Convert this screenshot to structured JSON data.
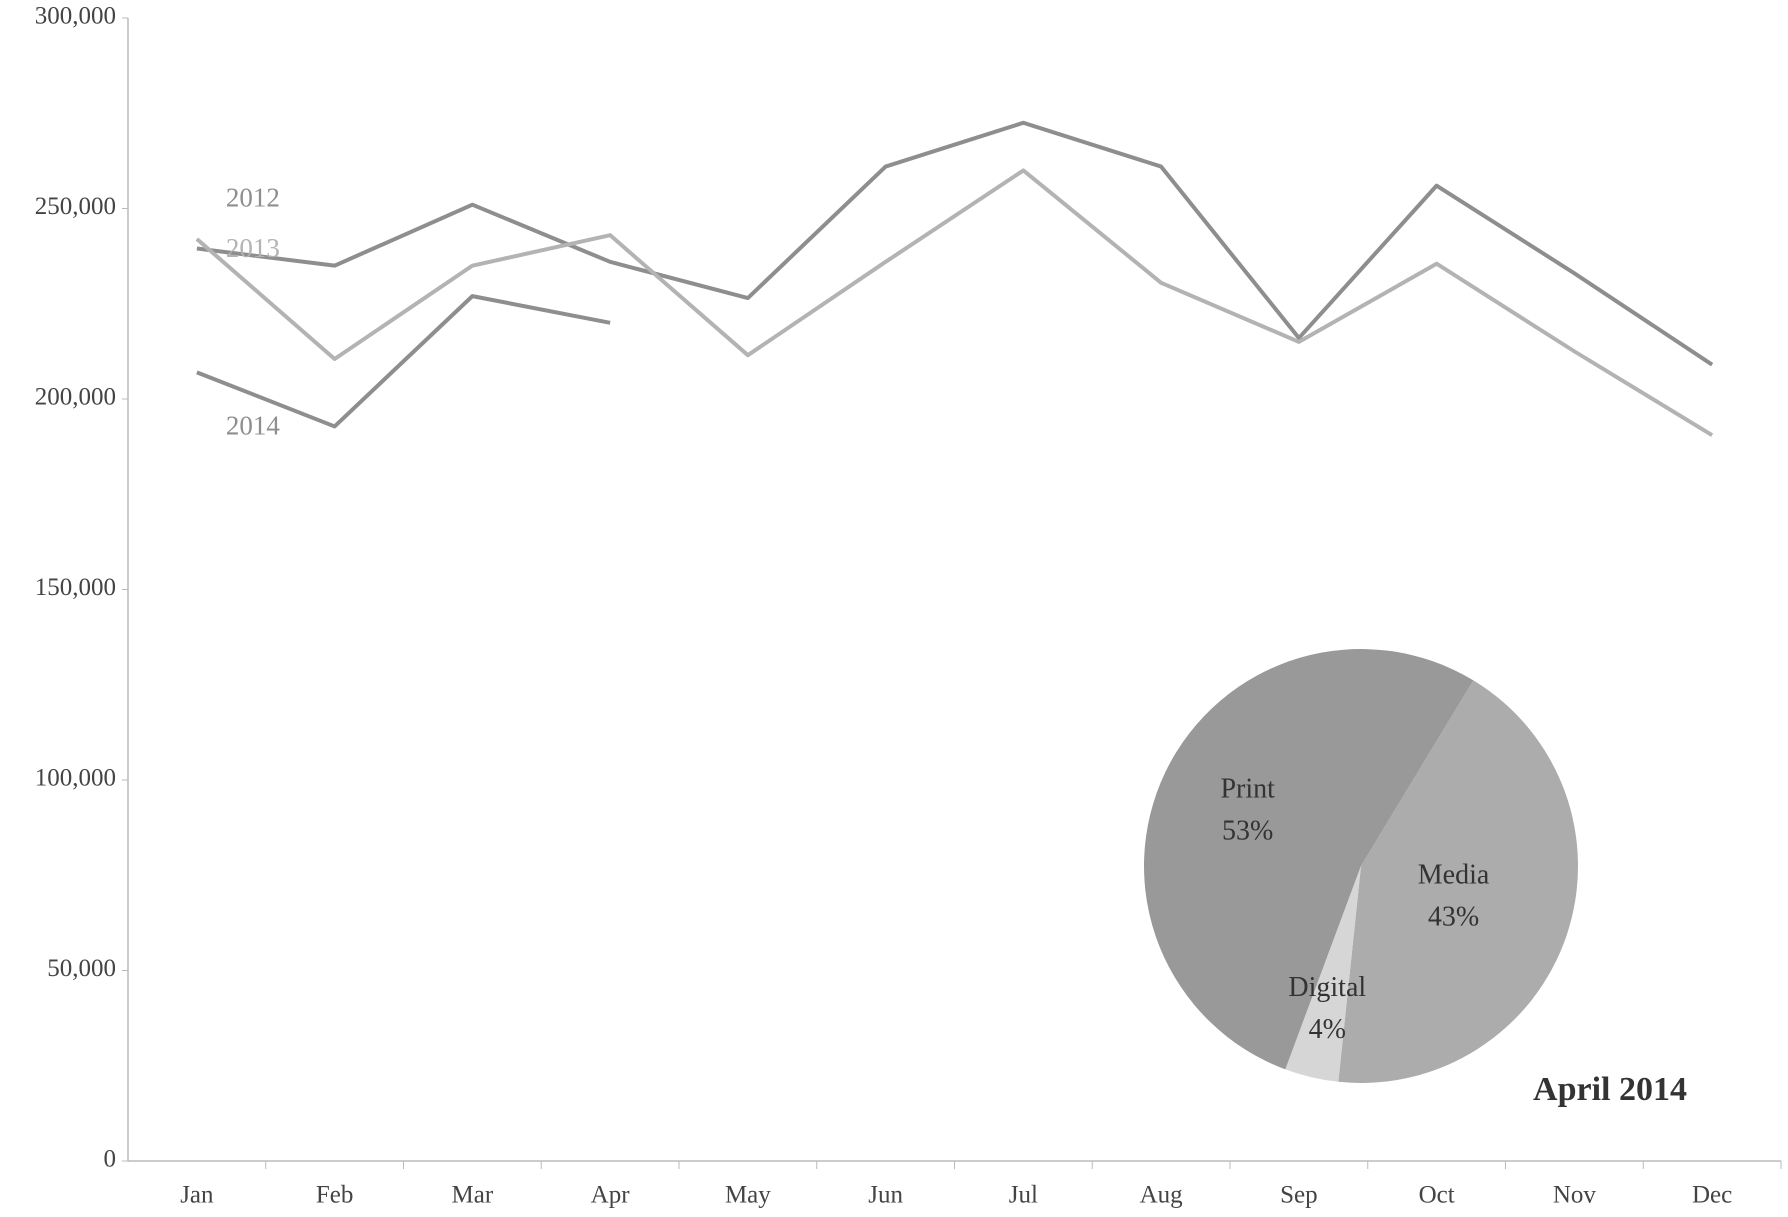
{
  "chart_data": [
    {
      "type": "line",
      "categories": [
        "Jan",
        "Feb",
        "Mar",
        "Apr",
        "May",
        "Jun",
        "Jul",
        "Aug",
        "Sep",
        "Oct",
        "Nov",
        "Dec"
      ],
      "series": [
        {
          "name": "2012",
          "color": "#8e8e8e",
          "values": [
            239500,
            235000,
            251000,
            236000,
            226500,
            261000,
            272500,
            261000,
            216000,
            256000,
            233000,
            209000
          ]
        },
        {
          "name": "2013",
          "color": "#b3b3b3",
          "values": [
            242000,
            210500,
            235000,
            243000,
            211500,
            236000,
            260000,
            230500,
            215000,
            235500,
            212500,
            190500
          ]
        },
        {
          "name": "2014",
          "color": "#8e8e8e",
          "values": [
            207000,
            192800,
            227000,
            220000,
            null,
            null,
            null,
            null,
            null,
            null,
            null,
            null
          ]
        }
      ],
      "ylim": [
        0,
        300000
      ],
      "yticks": [
        0,
        {
          "value": 50000,
          "label": "50,000"
        },
        {
          "value": 100000,
          "label": "100,000"
        },
        {
          "value": 150000,
          "label": "150,000"
        },
        {
          "value": 200000,
          "label": "200,000"
        },
        {
          "value": 250000,
          "label": "250,000"
        },
        {
          "value": 300000,
          "label": "300,000"
        }
      ],
      "grid": false
    },
    {
      "type": "pie",
      "title": "April 2014",
      "categories": [
        "Print",
        "Media",
        "Digital"
      ],
      "values": [
        53,
        43,
        4
      ],
      "value_labels": [
        "53%",
        "43%",
        "4%"
      ],
      "colors": [
        "#999999",
        "#acacac",
        "#d6d6d6"
      ]
    }
  ]
}
